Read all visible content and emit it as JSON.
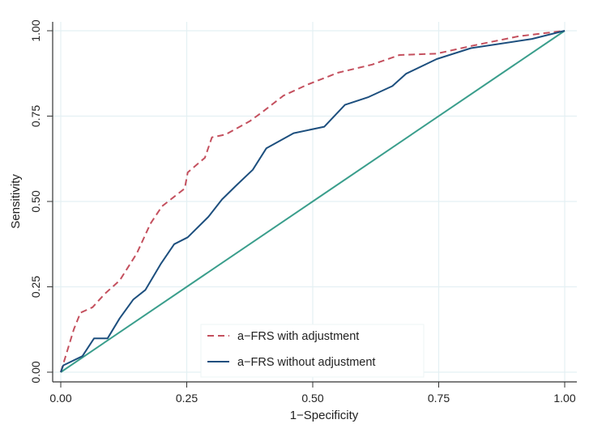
{
  "chart_data": {
    "type": "line",
    "title": "",
    "xlabel": "1−Specificity",
    "ylabel": "Sensitivity",
    "xlim": [
      0,
      1
    ],
    "ylim": [
      0,
      1
    ],
    "xticks": [
      "0.00",
      "0.25",
      "0.50",
      "0.75",
      "1.00"
    ],
    "yticks": [
      "0.00",
      "0.25",
      "0.50",
      "0.75",
      "1.00"
    ],
    "grid": true,
    "legend_position": "bottom-center-inside",
    "series": [
      {
        "name": "a−FRS with adjustment",
        "style": "dashed",
        "color": "#c4505e",
        "x": [
          0,
          0.026,
          0.039,
          0.063,
          0.087,
          0.117,
          0.151,
          0.178,
          0.201,
          0.246,
          0.252,
          0.286,
          0.3,
          0.327,
          0.375,
          0.401,
          0.442,
          0.489,
          0.55,
          0.618,
          0.672,
          0.746,
          0.82,
          0.909,
          1
        ],
        "y": [
          0,
          0.126,
          0.174,
          0.19,
          0.229,
          0.269,
          0.348,
          0.435,
          0.486,
          0.538,
          0.585,
          0.628,
          0.688,
          0.696,
          0.735,
          0.763,
          0.81,
          0.842,
          0.877,
          0.901,
          0.929,
          0.933,
          0.957,
          0.984,
          1
        ]
      },
      {
        "name": "a−FRS without adjustment",
        "style": "solid",
        "color": "#1d4f7e",
        "x": [
          0,
          0.005,
          0.043,
          0.066,
          0.093,
          0.117,
          0.144,
          0.168,
          0.198,
          0.225,
          0.252,
          0.293,
          0.32,
          0.347,
          0.381,
          0.408,
          0.462,
          0.523,
          0.564,
          0.611,
          0.658,
          0.685,
          0.746,
          0.814,
          0.935,
          1
        ],
        "y": [
          0,
          0.02,
          0.047,
          0.099,
          0.099,
          0.158,
          0.213,
          0.241,
          0.316,
          0.375,
          0.395,
          0.455,
          0.506,
          0.545,
          0.593,
          0.656,
          0.7,
          0.719,
          0.783,
          0.806,
          0.838,
          0.874,
          0.917,
          0.949,
          0.976,
          1
        ]
      },
      {
        "style": "solid",
        "color": "#3a9e8c",
        "x": [
          0,
          1
        ],
        "y": [
          0,
          1
        ]
      }
    ]
  }
}
